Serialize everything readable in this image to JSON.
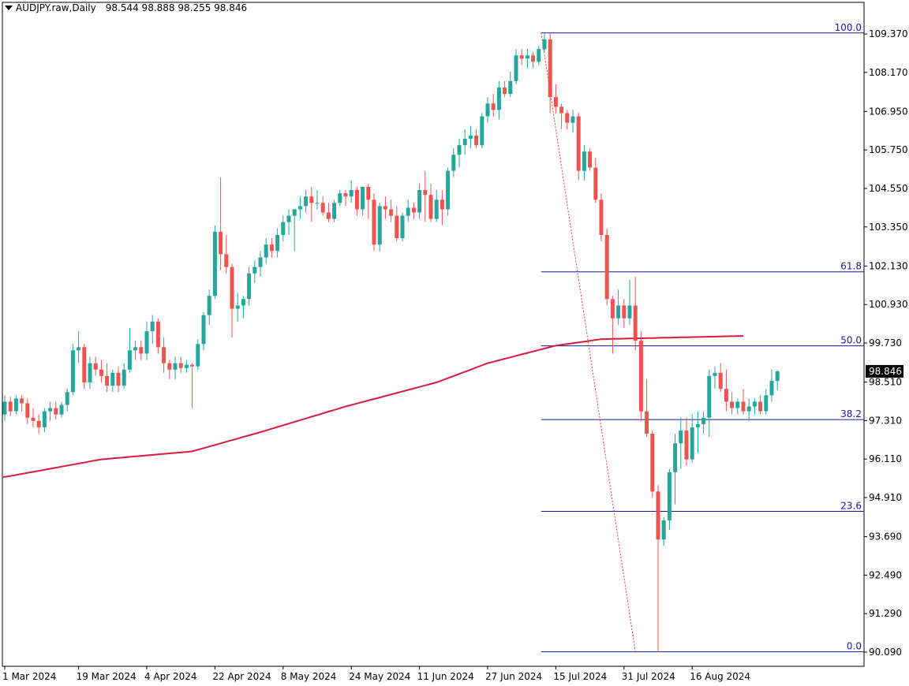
{
  "header": {
    "symbol": "AUDJPY.raw,Daily",
    "ohlc": "98.544 98.888 98.255 98.846"
  },
  "colors": {
    "bull": "#26a69a",
    "bear": "#ef5350",
    "ma": "#d81b3f",
    "fib": "#1a1a9e",
    "axis": "#000000",
    "price_tag_bg": "#000000",
    "price_tag_fg": "#ffffff"
  },
  "chart_data": {
    "type": "candlestick",
    "symbol": "AUDJPY.raw",
    "timeframe": "Daily",
    "current_price_label": "98.846",
    "y_ticks": [
      109.37,
      108.17,
      106.95,
      105.75,
      104.55,
      103.35,
      102.13,
      100.93,
      99.73,
      98.51,
      97.31,
      96.11,
      94.91,
      93.69,
      92.49,
      91.29,
      90.09
    ],
    "y_tick_labels": [
      "109.370",
      "108.170",
      "106.950",
      "105.750",
      "104.550",
      "103.350",
      "102.130",
      "100.930",
      "99.730",
      "98.510",
      "97.310",
      "96.110",
      "94.910",
      "93.690",
      "92.490",
      "91.290",
      "90.090"
    ],
    "x_labels": [
      {
        "label": "1 Mar 2024",
        "bar": 0
      },
      {
        "label": "19 Mar 2024",
        "bar": 13
      },
      {
        "label": "4 Apr 2024",
        "bar": 25
      },
      {
        "label": "22 Apr 2024",
        "bar": 37
      },
      {
        "label": "8 May 2024",
        "bar": 49
      },
      {
        "label": "24 May 2024",
        "bar": 61
      },
      {
        "label": "11 Jun 2024",
        "bar": 73
      },
      {
        "label": "27 Jun 2024",
        "bar": 85
      },
      {
        "label": "15 Jul 2024",
        "bar": 97
      },
      {
        "label": "31 Jul 2024",
        "bar": 109
      },
      {
        "label": "16 Aug 2024",
        "bar": 121
      }
    ],
    "fibonacci": {
      "levels": [
        {
          "label": "100.0",
          "price": 109.4
        },
        {
          "label": "61.8",
          "price": 101.95
        },
        {
          "label": "50.0",
          "price": 99.64
        },
        {
          "label": "38.2",
          "price": 97.34
        },
        {
          "label": "23.6",
          "price": 94.48
        },
        {
          "label": "0.0",
          "price": 90.1
        }
      ],
      "trend_line": {
        "from_bar": 94,
        "from_price": 109.4,
        "to_bar": 111,
        "to_price": 90.1
      }
    },
    "moving_average": {
      "start_value": 95.55,
      "anchors": [
        {
          "bar": 0,
          "value": 95.55
        },
        {
          "bar": 17,
          "value": 96.1
        },
        {
          "bar": 33,
          "value": 96.35
        },
        {
          "bar": 45,
          "value": 96.95
        },
        {
          "bar": 60,
          "value": 97.75
        },
        {
          "bar": 76,
          "value": 98.5
        },
        {
          "bar": 85,
          "value": 99.1
        },
        {
          "bar": 97,
          "value": 99.65
        },
        {
          "bar": 105,
          "value": 99.85
        },
        {
          "bar": 130,
          "value": 99.95
        }
      ]
    },
    "candles": [
      {
        "o": 97.5,
        "h": 98.1,
        "l": 97.3,
        "c": 97.9
      },
      {
        "o": 97.9,
        "h": 98.05,
        "l": 97.45,
        "c": 97.6
      },
      {
        "o": 97.6,
        "h": 98.1,
        "l": 97.5,
        "c": 98.0
      },
      {
        "o": 98.0,
        "h": 98.1,
        "l": 97.6,
        "c": 97.85
      },
      {
        "o": 97.85,
        "h": 98.0,
        "l": 97.2,
        "c": 97.4
      },
      {
        "o": 97.4,
        "h": 97.7,
        "l": 97.1,
        "c": 97.3
      },
      {
        "o": 97.3,
        "h": 97.5,
        "l": 96.9,
        "c": 97.1
      },
      {
        "o": 97.1,
        "h": 97.7,
        "l": 96.95,
        "c": 97.6
      },
      {
        "o": 97.6,
        "h": 97.9,
        "l": 97.3,
        "c": 97.7
      },
      {
        "o": 97.7,
        "h": 97.9,
        "l": 97.35,
        "c": 97.5
      },
      {
        "o": 97.5,
        "h": 97.9,
        "l": 97.4,
        "c": 97.8
      },
      {
        "o": 97.8,
        "h": 98.3,
        "l": 97.6,
        "c": 98.2
      },
      {
        "o": 98.2,
        "h": 99.7,
        "l": 98.1,
        "c": 99.5
      },
      {
        "o": 99.5,
        "h": 100.1,
        "l": 99.1,
        "c": 99.6
      },
      {
        "o": 99.6,
        "h": 99.7,
        "l": 98.3,
        "c": 98.5
      },
      {
        "o": 98.5,
        "h": 99.3,
        "l": 98.3,
        "c": 99.1
      },
      {
        "o": 99.1,
        "h": 99.3,
        "l": 98.7,
        "c": 98.9
      },
      {
        "o": 98.9,
        "h": 99.2,
        "l": 98.5,
        "c": 98.7
      },
      {
        "o": 98.7,
        "h": 99.1,
        "l": 98.2,
        "c": 98.4
      },
      {
        "o": 98.4,
        "h": 98.9,
        "l": 98.2,
        "c": 98.8
      },
      {
        "o": 98.8,
        "h": 99.0,
        "l": 98.2,
        "c": 98.4
      },
      {
        "o": 98.4,
        "h": 99.1,
        "l": 98.3,
        "c": 98.9
      },
      {
        "o": 98.9,
        "h": 100.2,
        "l": 98.8,
        "c": 99.5
      },
      {
        "o": 99.5,
        "h": 99.8,
        "l": 99.2,
        "c": 99.6
      },
      {
        "o": 99.6,
        "h": 99.8,
        "l": 99.2,
        "c": 99.4
      },
      {
        "o": 99.4,
        "h": 100.4,
        "l": 99.2,
        "c": 100.1
      },
      {
        "o": 100.1,
        "h": 100.6,
        "l": 99.7,
        "c": 100.4
      },
      {
        "o": 100.4,
        "h": 100.5,
        "l": 99.4,
        "c": 99.6
      },
      {
        "o": 99.6,
        "h": 99.9,
        "l": 98.8,
        "c": 99.1
      },
      {
        "o": 99.1,
        "h": 99.2,
        "l": 98.6,
        "c": 98.9
      },
      {
        "o": 98.9,
        "h": 99.3,
        "l": 98.6,
        "c": 99.1
      },
      {
        "o": 99.1,
        "h": 99.3,
        "l": 98.8,
        "c": 98.95
      },
      {
        "o": 98.95,
        "h": 99.2,
        "l": 98.8,
        "c": 99.05
      },
      {
        "o": 99.05,
        "h": 99.1,
        "l": 97.7,
        "c": 99.0
      },
      {
        "o": 99.0,
        "h": 99.85,
        "l": 98.9,
        "c": 99.7
      },
      {
        "o": 99.7,
        "h": 100.7,
        "l": 99.5,
        "c": 100.6
      },
      {
        "o": 100.6,
        "h": 101.4,
        "l": 100.3,
        "c": 101.2
      },
      {
        "o": 101.2,
        "h": 103.4,
        "l": 101.1,
        "c": 103.2
      },
      {
        "o": 103.2,
        "h": 104.9,
        "l": 102.0,
        "c": 102.5
      },
      {
        "o": 102.5,
        "h": 103.1,
        "l": 101.9,
        "c": 102.1
      },
      {
        "o": 102.1,
        "h": 102.2,
        "l": 99.9,
        "c": 100.8
      },
      {
        "o": 100.8,
        "h": 101.3,
        "l": 100.4,
        "c": 100.9
      },
      {
        "o": 100.9,
        "h": 101.2,
        "l": 100.5,
        "c": 101.1
      },
      {
        "o": 101.1,
        "h": 102.1,
        "l": 100.9,
        "c": 101.9
      },
      {
        "o": 101.9,
        "h": 102.3,
        "l": 101.6,
        "c": 102.1
      },
      {
        "o": 102.1,
        "h": 102.6,
        "l": 101.8,
        "c": 102.4
      },
      {
        "o": 102.4,
        "h": 103.0,
        "l": 102.2,
        "c": 102.8
      },
      {
        "o": 102.8,
        "h": 103.0,
        "l": 102.4,
        "c": 102.6
      },
      {
        "o": 102.6,
        "h": 103.3,
        "l": 102.4,
        "c": 103.1
      },
      {
        "o": 103.1,
        "h": 103.7,
        "l": 102.9,
        "c": 103.5
      },
      {
        "o": 103.5,
        "h": 103.9,
        "l": 103.1,
        "c": 103.7
      },
      {
        "o": 103.7,
        "h": 103.9,
        "l": 102.6,
        "c": 103.9
      },
      {
        "o": 103.9,
        "h": 104.3,
        "l": 103.6,
        "c": 104.0
      },
      {
        "o": 104.0,
        "h": 104.5,
        "l": 103.8,
        "c": 104.3
      },
      {
        "o": 104.3,
        "h": 104.6,
        "l": 103.5,
        "c": 104.1
      },
      {
        "o": 104.1,
        "h": 104.5,
        "l": 103.9,
        "c": 104.1
      },
      {
        "o": 104.1,
        "h": 104.3,
        "l": 103.7,
        "c": 103.8
      },
      {
        "o": 103.8,
        "h": 104.1,
        "l": 103.5,
        "c": 103.6
      },
      {
        "o": 103.6,
        "h": 104.2,
        "l": 103.5,
        "c": 104.1
      },
      {
        "o": 104.1,
        "h": 104.5,
        "l": 104.0,
        "c": 104.4
      },
      {
        "o": 104.4,
        "h": 104.5,
        "l": 104.0,
        "c": 104.3
      },
      {
        "o": 104.3,
        "h": 104.8,
        "l": 104.1,
        "c": 104.5
      },
      {
        "o": 104.5,
        "h": 104.6,
        "l": 103.7,
        "c": 103.9
      },
      {
        "o": 103.9,
        "h": 104.6,
        "l": 103.7,
        "c": 104.6
      },
      {
        "o": 104.6,
        "h": 104.7,
        "l": 103.6,
        "c": 104.2
      },
      {
        "o": 104.2,
        "h": 104.4,
        "l": 102.6,
        "c": 102.8
      },
      {
        "o": 102.8,
        "h": 104.1,
        "l": 102.6,
        "c": 104.0
      },
      {
        "o": 104.0,
        "h": 104.3,
        "l": 103.6,
        "c": 103.9
      },
      {
        "o": 103.9,
        "h": 104.2,
        "l": 103.5,
        "c": 103.7
      },
      {
        "o": 103.7,
        "h": 104.0,
        "l": 102.9,
        "c": 103.0
      },
      {
        "o": 103.0,
        "h": 103.8,
        "l": 102.9,
        "c": 103.7
      },
      {
        "o": 103.7,
        "h": 104.2,
        "l": 103.5,
        "c": 103.95
      },
      {
        "o": 103.95,
        "h": 104.1,
        "l": 103.6,
        "c": 103.8
      },
      {
        "o": 103.8,
        "h": 104.7,
        "l": 103.6,
        "c": 104.5
      },
      {
        "o": 104.5,
        "h": 105.1,
        "l": 103.5,
        "c": 104.35
      },
      {
        "o": 104.35,
        "h": 104.7,
        "l": 103.5,
        "c": 103.6
      },
      {
        "o": 103.6,
        "h": 104.5,
        "l": 103.5,
        "c": 104.2
      },
      {
        "o": 104.2,
        "h": 104.5,
        "l": 103.4,
        "c": 103.9
      },
      {
        "o": 103.9,
        "h": 105.2,
        "l": 103.7,
        "c": 105.1
      },
      {
        "o": 105.1,
        "h": 105.8,
        "l": 104.9,
        "c": 105.6
      },
      {
        "o": 105.6,
        "h": 106.1,
        "l": 105.2,
        "c": 105.9
      },
      {
        "o": 105.9,
        "h": 106.4,
        "l": 105.6,
        "c": 106.1
      },
      {
        "o": 106.1,
        "h": 106.5,
        "l": 105.8,
        "c": 106.2
      },
      {
        "o": 106.2,
        "h": 106.4,
        "l": 105.8,
        "c": 105.9
      },
      {
        "o": 105.9,
        "h": 106.9,
        "l": 105.8,
        "c": 106.8
      },
      {
        "o": 106.8,
        "h": 107.4,
        "l": 106.6,
        "c": 107.2
      },
      {
        "o": 107.2,
        "h": 107.5,
        "l": 106.8,
        "c": 107.0
      },
      {
        "o": 107.0,
        "h": 107.9,
        "l": 106.7,
        "c": 107.7
      },
      {
        "o": 107.7,
        "h": 107.9,
        "l": 107.4,
        "c": 107.5
      },
      {
        "o": 107.5,
        "h": 108.2,
        "l": 107.4,
        "c": 107.9
      },
      {
        "o": 107.9,
        "h": 108.9,
        "l": 107.8,
        "c": 108.7
      },
      {
        "o": 108.7,
        "h": 108.9,
        "l": 108.4,
        "c": 108.6
      },
      {
        "o": 108.6,
        "h": 108.9,
        "l": 108.3,
        "c": 108.7
      },
      {
        "o": 108.7,
        "h": 108.8,
        "l": 108.3,
        "c": 108.5
      },
      {
        "o": 108.5,
        "h": 109.0,
        "l": 108.4,
        "c": 108.9
      },
      {
        "o": 108.9,
        "h": 109.4,
        "l": 108.8,
        "c": 109.2
      },
      {
        "o": 109.2,
        "h": 109.4,
        "l": 106.9,
        "c": 107.4
      },
      {
        "o": 107.4,
        "h": 107.8,
        "l": 106.9,
        "c": 107.1
      },
      {
        "o": 107.1,
        "h": 107.2,
        "l": 106.4,
        "c": 106.9
      },
      {
        "o": 106.9,
        "h": 107.0,
        "l": 106.4,
        "c": 106.6
      },
      {
        "o": 106.6,
        "h": 107.0,
        "l": 106.3,
        "c": 106.8
      },
      {
        "o": 106.8,
        "h": 106.9,
        "l": 104.8,
        "c": 105.1
      },
      {
        "o": 105.1,
        "h": 105.9,
        "l": 104.8,
        "c": 105.7
      },
      {
        "o": 105.7,
        "h": 105.8,
        "l": 105.1,
        "c": 105.2
      },
      {
        "o": 105.2,
        "h": 105.5,
        "l": 104.1,
        "c": 104.2
      },
      {
        "o": 104.2,
        "h": 104.4,
        "l": 102.9,
        "c": 103.1
      },
      {
        "o": 103.1,
        "h": 103.3,
        "l": 100.9,
        "c": 101.1
      },
      {
        "o": 101.1,
        "h": 101.2,
        "l": 99.4,
        "c": 100.5
      },
      {
        "o": 100.5,
        "h": 101.4,
        "l": 100.3,
        "c": 100.9
      },
      {
        "o": 100.9,
        "h": 101.1,
        "l": 100.2,
        "c": 100.5
      },
      {
        "o": 100.5,
        "h": 101.7,
        "l": 100.3,
        "c": 100.9
      },
      {
        "o": 100.9,
        "h": 101.8,
        "l": 99.5,
        "c": 99.8
      },
      {
        "o": 99.8,
        "h": 100.1,
        "l": 97.3,
        "c": 97.6
      },
      {
        "o": 97.6,
        "h": 98.6,
        "l": 96.8,
        "c": 96.9
      },
      {
        "o": 96.9,
        "h": 97.0,
        "l": 94.9,
        "c": 95.1
      },
      {
        "o": 95.1,
        "h": 95.3,
        "l": 90.1,
        "c": 93.6
      },
      {
        "o": 93.6,
        "h": 94.3,
        "l": 93.4,
        "c": 94.2
      },
      {
        "o": 94.2,
        "h": 95.8,
        "l": 93.9,
        "c": 95.7
      },
      {
        "o": 95.7,
        "h": 96.9,
        "l": 94.7,
        "c": 96.6
      },
      {
        "o": 96.6,
        "h": 97.4,
        "l": 95.8,
        "c": 97.0
      },
      {
        "o": 97.0,
        "h": 97.4,
        "l": 95.9,
        "c": 96.1
      },
      {
        "o": 96.1,
        "h": 97.5,
        "l": 96.0,
        "c": 97.1
      },
      {
        "o": 97.1,
        "h": 97.6,
        "l": 96.3,
        "c": 97.2
      },
      {
        "o": 97.2,
        "h": 97.6,
        "l": 96.9,
        "c": 97.4
      },
      {
        "o": 97.4,
        "h": 98.9,
        "l": 96.8,
        "c": 98.7
      },
      {
        "o": 98.7,
        "h": 99.0,
        "l": 98.3,
        "c": 98.8
      },
      {
        "o": 98.8,
        "h": 99.1,
        "l": 98.2,
        "c": 98.3
      },
      {
        "o": 98.3,
        "h": 98.9,
        "l": 97.6,
        "c": 97.9
      },
      {
        "o": 97.9,
        "h": 98.2,
        "l": 97.5,
        "c": 97.7
      },
      {
        "o": 97.7,
        "h": 98.0,
        "l": 97.5,
        "c": 97.9
      },
      {
        "o": 97.9,
        "h": 98.3,
        "l": 97.5,
        "c": 97.6
      },
      {
        "o": 97.6,
        "h": 98.0,
        "l": 97.3,
        "c": 97.75
      },
      {
        "o": 97.75,
        "h": 98.0,
        "l": 97.5,
        "c": 97.9
      },
      {
        "o": 97.9,
        "h": 98.1,
        "l": 97.5,
        "c": 97.6
      },
      {
        "o": 97.6,
        "h": 98.3,
        "l": 97.5,
        "c": 98.1
      },
      {
        "o": 98.1,
        "h": 98.9,
        "l": 97.9,
        "c": 98.55
      },
      {
        "o": 98.544,
        "h": 98.888,
        "l": 98.255,
        "c": 98.846
      }
    ]
  }
}
